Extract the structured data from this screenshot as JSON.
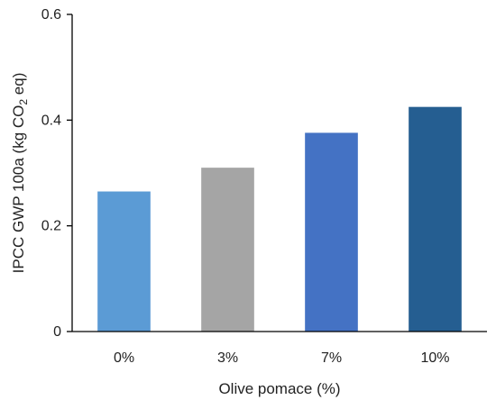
{
  "chart_data": {
    "type": "bar",
    "title": "",
    "xlabel": "Olive pomace (%)",
    "ylabel": {
      "prefix": "IPCC GWP 100a (kg CO",
      "subscript": "2",
      "suffix": " eq)"
    },
    "categories": [
      "0%",
      "3%",
      "7%",
      "10%"
    ],
    "values": [
      0.265,
      0.31,
      0.376,
      0.425
    ],
    "colors": [
      "#5b9bd5",
      "#a5a5a5",
      "#4472c4",
      "#255e91"
    ],
    "ylim": [
      0,
      0.6
    ],
    "yticks": [
      0,
      0.2,
      0.4,
      0.6
    ],
    "ytick_labels": [
      "0",
      "0.2",
      "0.4",
      "0.6"
    ],
    "grid": false,
    "legend": "none"
  }
}
